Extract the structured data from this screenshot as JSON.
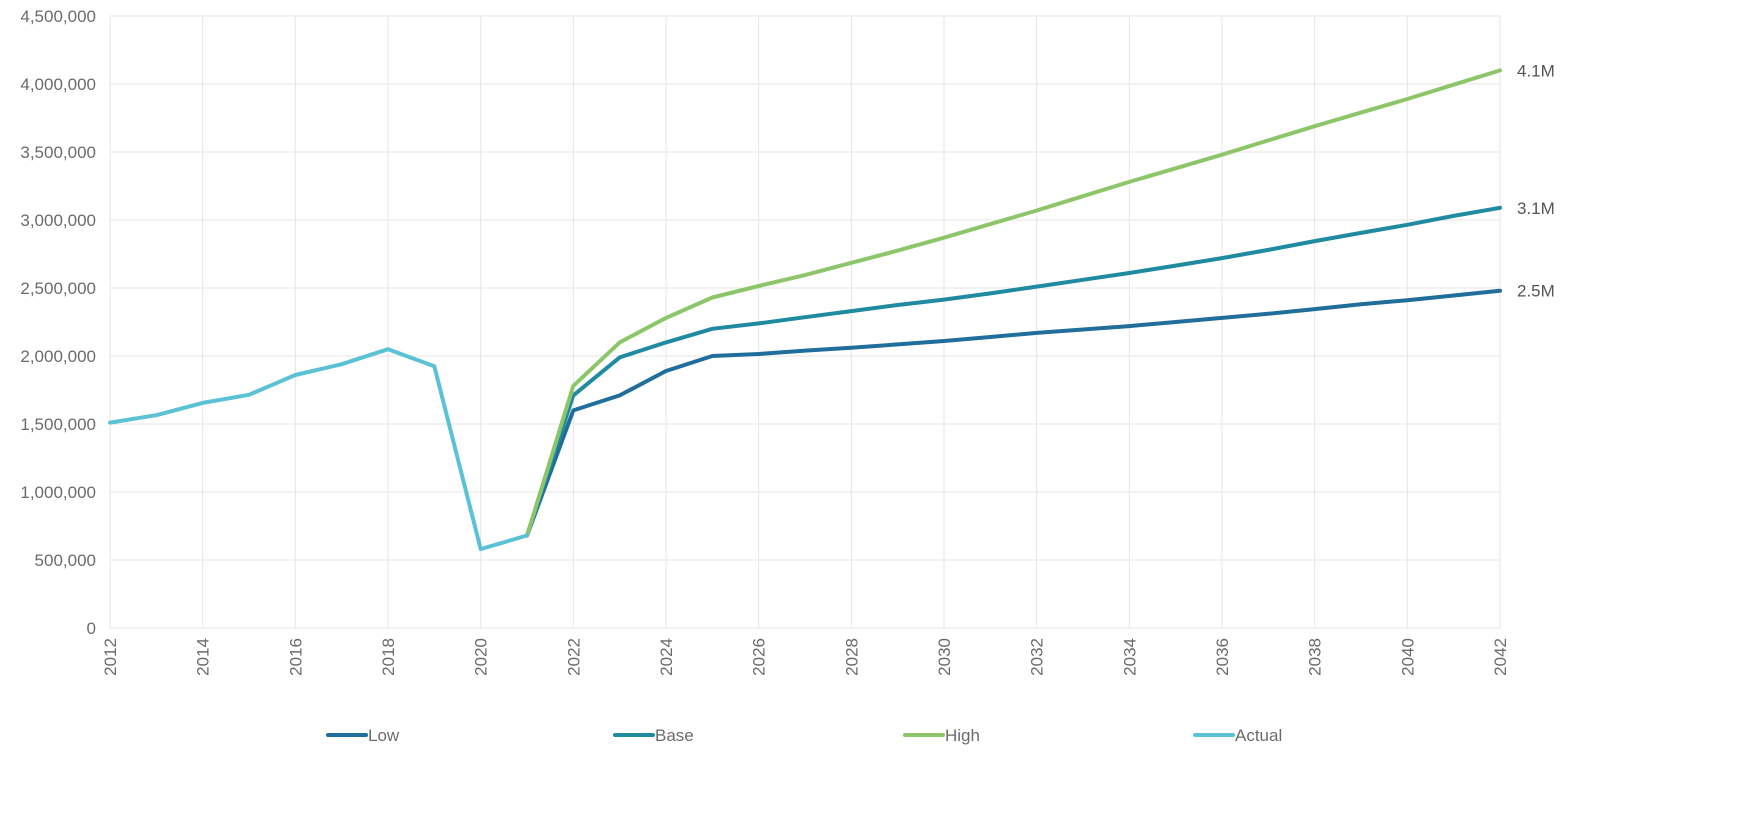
{
  "chart_data": {
    "type": "line",
    "title": "",
    "xlabel": "",
    "ylabel": "",
    "x": [
      2012,
      2013,
      2014,
      2015,
      2016,
      2017,
      2018,
      2019,
      2020,
      2021,
      2022,
      2023,
      2024,
      2025,
      2026,
      2027,
      2028,
      2029,
      2030,
      2031,
      2032,
      2033,
      2034,
      2035,
      2036,
      2037,
      2038,
      2039,
      2040,
      2041,
      2042
    ],
    "xlim": [
      2012,
      2042
    ],
    "ylim": [
      0,
      4500000
    ],
    "x_ticks": [
      "2012",
      "2014",
      "2016",
      "2018",
      "2020",
      "2022",
      "2024",
      "2026",
      "2028",
      "2030",
      "2032",
      "2034",
      "2036",
      "2038",
      "2040",
      "2042"
    ],
    "y_ticks": [
      "0",
      "500,000",
      "1,000,000",
      "1,500,000",
      "2,000,000",
      "2,500,000",
      "3,000,000",
      "3,500,000",
      "4,000,000",
      "4,500,000"
    ],
    "grid": true,
    "legend_position": "bottom",
    "series": [
      {
        "name": "Low",
        "color": "#1f6e9c",
        "x": [
          2021,
          2022,
          2023,
          2024,
          2025,
          2026,
          2027,
          2028,
          2029,
          2030,
          2031,
          2032,
          2033,
          2034,
          2035,
          2036,
          2037,
          2038,
          2039,
          2040,
          2041,
          2042
        ],
        "values": [
          680000,
          1600000,
          1710000,
          1890000,
          2000000,
          2015000,
          2040000,
          2060000,
          2085000,
          2110000,
          2140000,
          2170000,
          2195000,
          2220000,
          2250000,
          2280000,
          2310000,
          2345000,
          2380000,
          2410000,
          2445000,
          2480000
        ],
        "end_label": "2.5M"
      },
      {
        "name": "Base",
        "color": "#1f8aa0",
        "x": [
          2021,
          2022,
          2023,
          2024,
          2025,
          2026,
          2027,
          2028,
          2029,
          2030,
          2031,
          2032,
          2033,
          2034,
          2035,
          2036,
          2037,
          2038,
          2039,
          2040,
          2041,
          2042
        ],
        "values": [
          680000,
          1710000,
          1990000,
          2100000,
          2200000,
          2240000,
          2285000,
          2330000,
          2375000,
          2415000,
          2460000,
          2510000,
          2560000,
          2610000,
          2665000,
          2720000,
          2780000,
          2845000,
          2905000,
          2965000,
          3030000,
          3090000
        ],
        "end_label": "3.1M"
      },
      {
        "name": "High",
        "color": "#8dc66a",
        "x": [
          2021,
          2022,
          2023,
          2024,
          2025,
          2026,
          2027,
          2028,
          2029,
          2030,
          2031,
          2032,
          2033,
          2034,
          2035,
          2036,
          2037,
          2038,
          2039,
          2040,
          2041,
          2042
        ],
        "values": [
          680000,
          1780000,
          2100000,
          2280000,
          2430000,
          2515000,
          2595000,
          2685000,
          2775000,
          2870000,
          2970000,
          3070000,
          3175000,
          3280000,
          3380000,
          3480000,
          3585000,
          3690000,
          3790000,
          3890000,
          3995000,
          4100000
        ],
        "end_label": "4.1M"
      },
      {
        "name": "Actual",
        "color": "#5bc2d6",
        "x": [
          2012,
          2013,
          2014,
          2015,
          2016,
          2017,
          2018,
          2019,
          2020,
          2021
        ],
        "values": [
          1510000,
          1565000,
          1655000,
          1715000,
          1860000,
          1940000,
          2050000,
          1925000,
          580000,
          680000
        ]
      }
    ]
  }
}
